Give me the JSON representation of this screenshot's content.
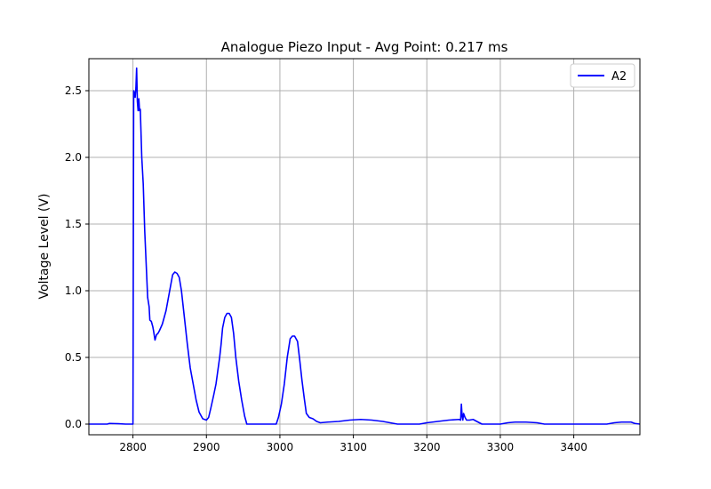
{
  "chart_data": {
    "type": "line",
    "title": "Analogue Piezo Input - Avg Point: 0.217 ms",
    "xlabel": "",
    "ylabel": "Voltage Level (V)",
    "xlim": [
      2740,
      3490
    ],
    "ylim": [
      -0.08,
      2.74
    ],
    "grid": true,
    "legend_position": "top-right",
    "x_ticks": [
      2800,
      2900,
      3000,
      3100,
      3200,
      3300,
      3400
    ],
    "y_ticks": [
      0.0,
      0.5,
      1.0,
      1.5,
      2.0,
      2.5
    ],
    "x_tick_labels": [
      "2800",
      "2900",
      "3000",
      "3100",
      "3200",
      "3300",
      "3400"
    ],
    "y_tick_labels": [
      "0.0",
      "0.5",
      "1.0",
      "1.5",
      "2.0",
      "2.5"
    ],
    "series": [
      {
        "name": "A2",
        "color": "#0000ff",
        "points": [
          [
            2740,
            0.0
          ],
          [
            2765,
            0.0
          ],
          [
            2768,
            0.005
          ],
          [
            2780,
            0.003
          ],
          [
            2790,
            0.0
          ],
          [
            2800,
            0.0
          ],
          [
            2801,
            2.5
          ],
          [
            2802,
            2.48
          ],
          [
            2803,
            2.45
          ],
          [
            2804,
            2.52
          ],
          [
            2805,
            2.67
          ],
          [
            2806,
            2.42
          ],
          [
            2807,
            2.35
          ],
          [
            2808,
            2.44
          ],
          [
            2809,
            2.35
          ],
          [
            2810,
            2.36
          ],
          [
            2812,
            2.0
          ],
          [
            2814,
            1.8
          ],
          [
            2816,
            1.45
          ],
          [
            2818,
            1.2
          ],
          [
            2820,
            0.95
          ],
          [
            2822,
            0.88
          ],
          [
            2823,
            0.78
          ],
          [
            2825,
            0.77
          ],
          [
            2827,
            0.73
          ],
          [
            2828,
            0.7
          ],
          [
            2830,
            0.63
          ],
          [
            2832,
            0.67
          ],
          [
            2834,
            0.68
          ],
          [
            2836,
            0.7
          ],
          [
            2840,
            0.75
          ],
          [
            2845,
            0.85
          ],
          [
            2850,
            1.0
          ],
          [
            2854,
            1.12
          ],
          [
            2857,
            1.14
          ],
          [
            2860,
            1.13
          ],
          [
            2863,
            1.1
          ],
          [
            2866,
            1.0
          ],
          [
            2870,
            0.8
          ],
          [
            2874,
            0.6
          ],
          [
            2878,
            0.42
          ],
          [
            2882,
            0.3
          ],
          [
            2886,
            0.18
          ],
          [
            2890,
            0.09
          ],
          [
            2895,
            0.04
          ],
          [
            2900,
            0.03
          ],
          [
            2903,
            0.05
          ],
          [
            2906,
            0.12
          ],
          [
            2910,
            0.22
          ],
          [
            2913,
            0.3
          ],
          [
            2915,
            0.38
          ],
          [
            2917,
            0.46
          ],
          [
            2918,
            0.5
          ],
          [
            2920,
            0.6
          ],
          [
            2922,
            0.72
          ],
          [
            2925,
            0.8
          ],
          [
            2928,
            0.83
          ],
          [
            2931,
            0.83
          ],
          [
            2934,
            0.8
          ],
          [
            2937,
            0.68
          ],
          [
            2940,
            0.5
          ],
          [
            2944,
            0.32
          ],
          [
            2948,
            0.18
          ],
          [
            2952,
            0.06
          ],
          [
            2955,
            0.0
          ],
          [
            2960,
            0.0
          ],
          [
            2995,
            0.0
          ],
          [
            2998,
            0.05
          ],
          [
            3002,
            0.15
          ],
          [
            3006,
            0.3
          ],
          [
            3010,
            0.5
          ],
          [
            3014,
            0.64
          ],
          [
            3017,
            0.66
          ],
          [
            3020,
            0.66
          ],
          [
            3024,
            0.62
          ],
          [
            3027,
            0.48
          ],
          [
            3030,
            0.33
          ],
          [
            3033,
            0.2
          ],
          [
            3036,
            0.08
          ],
          [
            3040,
            0.05
          ],
          [
            3045,
            0.04
          ],
          [
            3050,
            0.02
          ],
          [
            3055,
            0.01
          ],
          [
            3065,
            0.015
          ],
          [
            3080,
            0.02
          ],
          [
            3095,
            0.03
          ],
          [
            3110,
            0.035
          ],
          [
            3125,
            0.03
          ],
          [
            3140,
            0.02
          ],
          [
            3155,
            0.005
          ],
          [
            3160,
            0.0
          ],
          [
            3190,
            0.0
          ],
          [
            3200,
            0.01
          ],
          [
            3215,
            0.02
          ],
          [
            3230,
            0.03
          ],
          [
            3244,
            0.035
          ],
          [
            3246,
            0.03
          ],
          [
            3247,
            0.15
          ],
          [
            3248,
            0.06
          ],
          [
            3249,
            0.03
          ],
          [
            3250,
            0.08
          ],
          [
            3252,
            0.05
          ],
          [
            3254,
            0.03
          ],
          [
            3258,
            0.03
          ],
          [
            3263,
            0.035
          ],
          [
            3268,
            0.02
          ],
          [
            3275,
            0.0
          ],
          [
            3300,
            0.0
          ],
          [
            3310,
            0.01
          ],
          [
            3320,
            0.015
          ],
          [
            3335,
            0.015
          ],
          [
            3350,
            0.01
          ],
          [
            3360,
            0.0
          ],
          [
            3445,
            0.0
          ],
          [
            3455,
            0.01
          ],
          [
            3465,
            0.015
          ],
          [
            3478,
            0.015
          ],
          [
            3483,
            0.005
          ],
          [
            3490,
            0.0
          ]
        ]
      }
    ]
  }
}
